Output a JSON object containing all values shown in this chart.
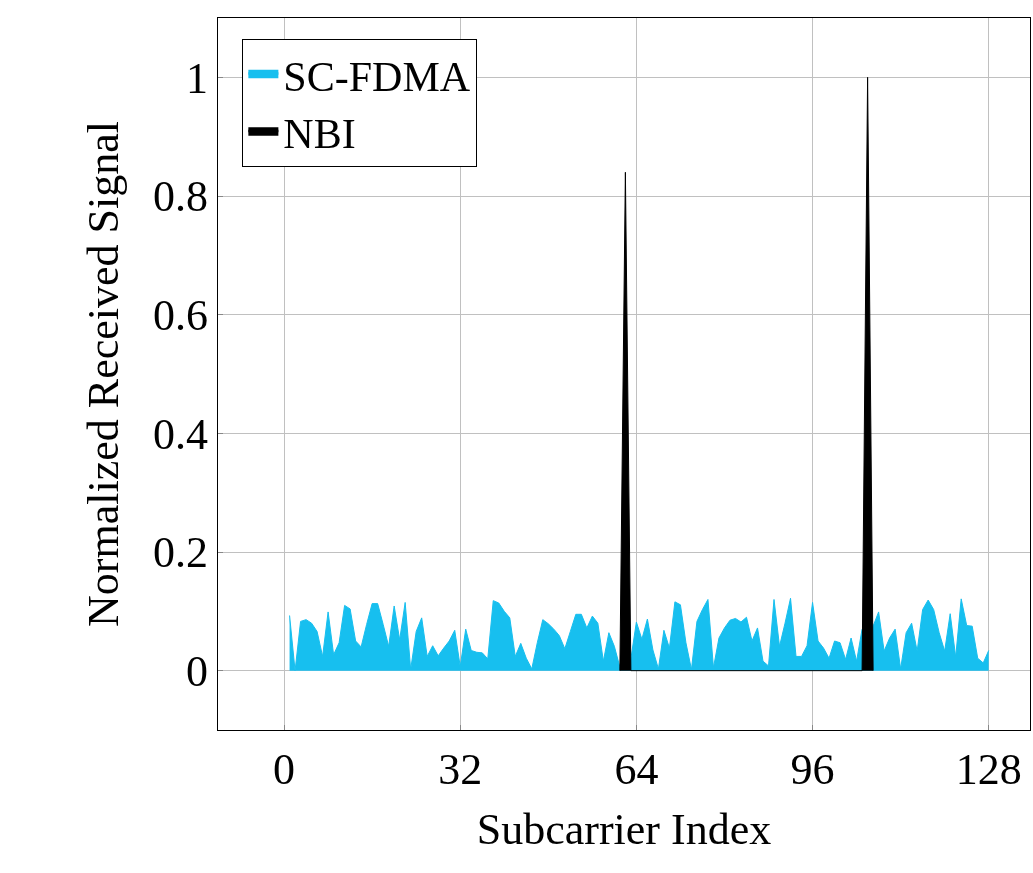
{
  "chart_data": {
    "type": "area",
    "xlabel": "Subcarrier Index",
    "ylabel": "Normalized Received Signal",
    "xlim": [
      -12,
      135.5
    ],
    "ylim": [
      -0.1,
      1.1
    ],
    "xticks": [
      0,
      32,
      64,
      96,
      128
    ],
    "yticks": [
      0,
      0.2,
      0.4,
      0.6,
      0.8,
      1
    ],
    "grid": true,
    "legend": "top left",
    "series": [
      {
        "name": "SC-FDMA",
        "color": "#17bfef",
        "x": [
          1,
          2,
          3,
          4,
          5,
          6,
          7,
          8,
          9,
          10,
          11,
          12,
          13,
          14,
          15,
          16,
          17,
          18,
          19,
          20,
          21,
          22,
          23,
          24,
          25,
          26,
          27,
          28,
          29,
          30,
          31,
          32,
          33,
          34,
          35,
          36,
          37,
          38,
          39,
          40,
          41,
          42,
          43,
          44,
          45,
          46,
          47,
          48,
          49,
          50,
          51,
          52,
          53,
          54,
          55,
          56,
          57,
          58,
          59,
          60,
          61,
          62,
          63,
          64,
          65,
          66,
          67,
          68,
          69,
          70,
          71,
          72,
          73,
          74,
          75,
          76,
          77,
          78,
          79,
          80,
          81,
          82,
          83,
          84,
          85,
          86,
          87,
          88,
          89,
          90,
          91,
          92,
          93,
          94,
          95,
          96,
          97,
          98,
          99,
          100,
          101,
          102,
          103,
          104,
          105,
          106,
          107,
          108,
          109,
          110,
          111,
          112,
          113,
          114,
          115,
          116,
          117,
          118,
          119,
          120,
          121,
          122,
          123,
          124,
          125,
          126,
          127,
          128
        ],
        "values": [
          0.093,
          0,
          0.083,
          0.086,
          0.08,
          0.066,
          0.024,
          0.099,
          0.027,
          0.047,
          0.11,
          0.104,
          0.05,
          0.04,
          0.078,
          0.113,
          0.113,
          0.078,
          0.041,
          0.109,
          0.052,
          0.115,
          0.002,
          0.066,
          0.089,
          0.024,
          0.042,
          0.025,
          0.038,
          0.05,
          0.068,
          0.007,
          0.07,
          0.034,
          0.031,
          0.03,
          0.02,
          0.118,
          0.114,
          0.1,
          0.089,
          0.024,
          0.046,
          0.021,
          0.003,
          0.047,
          0.086,
          0.079,
          0.07,
          0.059,
          0.037,
          0.066,
          0.095,
          0.095,
          0.072,
          0.092,
          0.08,
          0.016,
          0.064,
          0.041,
          0.006,
          null,
          0.02,
          0.082,
          0.053,
          0.087,
          0.035,
          0.003,
          0.068,
          0.038,
          0.116,
          0.111,
          0.047,
          0.002,
          0.083,
          0.103,
          0.12,
          0.005,
          0.055,
          0.072,
          0.085,
          0.088,
          0.082,
          0.09,
          0.05,
          0.072,
          0.016,
          0.008,
          0.12,
          0.041,
          0.08,
          0.122,
          0.024,
          0.024,
          0.042,
          0.115,
          0.05,
          0.038,
          0.021,
          0.05,
          0.047,
          0.019,
          0.055,
          0.016,
          0.07,
          null,
          0.075,
          0.099,
          0.033,
          0.055,
          0.07,
          0.003,
          0.064,
          0.08,
          0.033,
          0.103,
          0.119,
          0.103,
          0.064,
          0.033,
          0.096,
          0.023,
          0.121,
          0.076,
          0.075,
          0.021,
          0.013,
          0.034
        ]
      },
      {
        "name": "NBI",
        "color": "#000000",
        "x": [
          61,
          62,
          63,
          105,
          106,
          107
        ],
        "values": [
          0,
          0.84,
          0,
          0,
          1,
          0
        ]
      }
    ]
  }
}
